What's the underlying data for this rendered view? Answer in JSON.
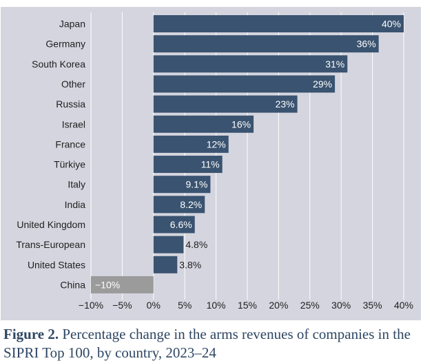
{
  "colors": {
    "panel": "#d4d5de",
    "bar_positive": "#3a5370",
    "bar_negative": "#9b9b9b",
    "label_inside": "#ffffff",
    "label_outside": "#1f1f1f",
    "gridline": "#ffffff",
    "text": "#1f1f1f",
    "caption": "#2e4663"
  },
  "chart_data": {
    "type": "bar",
    "orientation": "horizontal",
    "categories": [
      "Japan",
      "Germany",
      "South Korea",
      "Other",
      "Russia",
      "Israel",
      "France",
      "Türkiye",
      "Italy",
      "India",
      "United Kingdom",
      "Trans-European",
      "United States",
      "China"
    ],
    "values": [
      40,
      36,
      31,
      29,
      23,
      16,
      12,
      11,
      9.1,
      8.2,
      6.6,
      4.8,
      3.8,
      -10
    ],
    "value_labels": [
      "40%",
      "36%",
      "31%",
      "29%",
      "23%",
      "16%",
      "12%",
      "11%",
      "9.1%",
      "8.2%",
      "6.6%",
      "4.8%",
      "3.8%",
      "−10%"
    ],
    "xlim": [
      -10,
      40
    ],
    "xticks": [
      -10,
      -5,
      0,
      5,
      10,
      15,
      20,
      25,
      30,
      35,
      40
    ],
    "xtick_labels": [
      "−10%",
      "−5%",
      "0%",
      "5%",
      "10%",
      "15%",
      "20%",
      "25%",
      "30%",
      "35%",
      "40%"
    ],
    "xlabel": "",
    "ylabel": "",
    "grid": true
  },
  "caption": {
    "label": "Figure 2.",
    "text": " Percentage change in the arms revenues of companies in the SIPRI Top 100, by country, 2023–24"
  }
}
